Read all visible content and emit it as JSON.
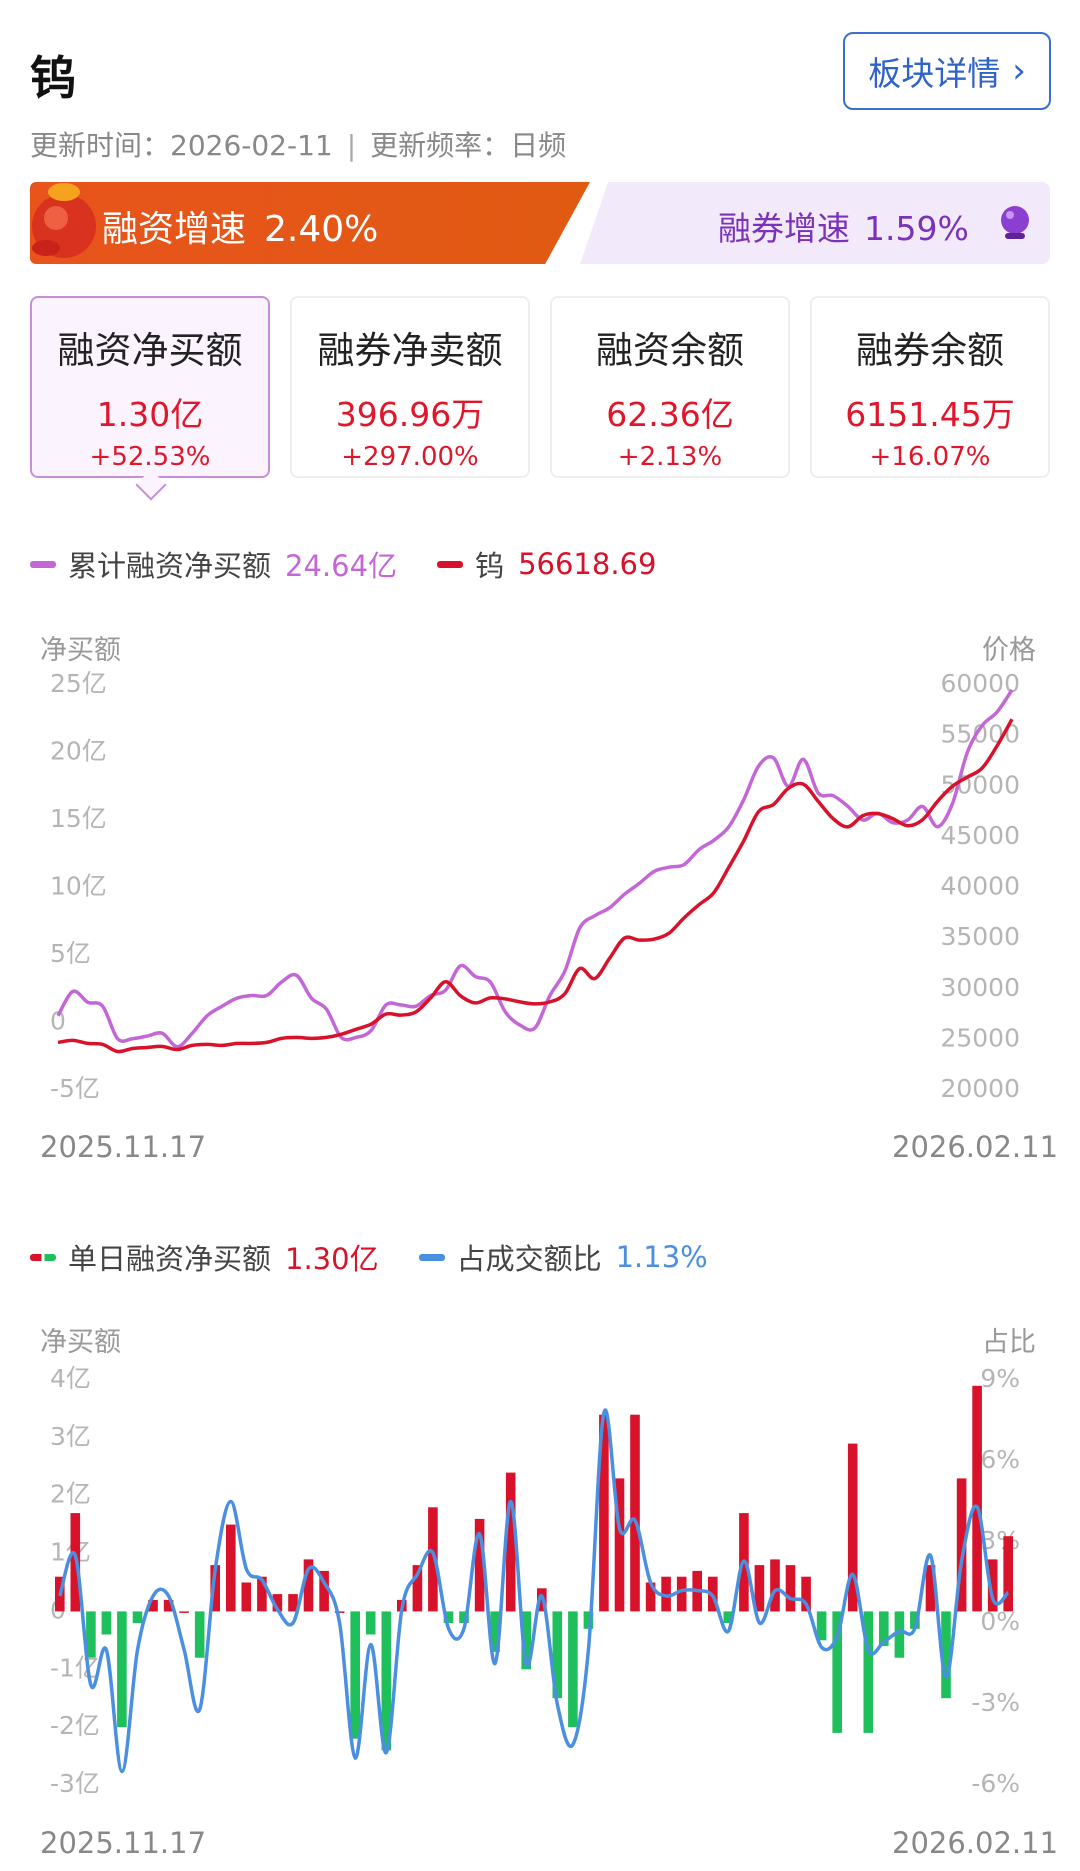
{
  "header": {
    "title": "钨",
    "detail_button": "板块详情",
    "update_time": "更新时间：2026-02-11",
    "update_freq": "更新频率：日频"
  },
  "speed": {
    "financing_label": "融资增速",
    "financing_value": "2.40%",
    "short_label": "融券增速",
    "short_value": "1.59%"
  },
  "cards": [
    {
      "label": "融资净买额",
      "value": "1.30亿",
      "change": "+52.53%"
    },
    {
      "label": "融券净卖额",
      "value": "396.96万",
      "change": "+297.00%"
    },
    {
      "label": "融资余额",
      "value": "62.36亿",
      "change": "+2.13%"
    },
    {
      "label": "融券余额",
      "value": "6151.45万",
      "change": "+16.07%"
    }
  ],
  "colors": {
    "purple": "#c467d6",
    "red": "#d7122a",
    "green": "#1fbf5c",
    "blue": "#4a8fe0"
  },
  "chart_data": [
    {
      "type": "line",
      "legend": [
        {
          "name": "累计融资净买额",
          "value": "24.64亿"
        },
        {
          "name": "钨",
          "value": "56618.69"
        }
      ],
      "left_axis_name": "净买额",
      "right_axis_name": "价格",
      "left_ticks": [
        "25亿",
        "20亿",
        "15亿",
        "10亿",
        "5亿",
        "0",
        "-5亿"
      ],
      "right_ticks": [
        "60000",
        "55000",
        "50000",
        "45000",
        "40000",
        "35000",
        "30000",
        "25000",
        "20000"
      ],
      "x_start": "2025.11.17",
      "x_end": "2026.02.11",
      "ylim_left": [
        -5,
        25
      ],
      "ylim_right": [
        20000,
        60000
      ],
      "series": [
        {
          "name": "累计融资净买额",
          "axis": "left",
          "values": [
            0.5,
            2.3,
            1.5,
            1.2,
            -1.2,
            -1.2,
            -1.0,
            -0.8,
            -1.8,
            -0.8,
            0.5,
            1.2,
            1.8,
            2.0,
            2.0,
            3.0,
            3.5,
            1.8,
            1.0,
            -1.1,
            -1.1,
            -0.6,
            1.3,
            1.3,
            1.2,
            2.0,
            2.4,
            4.2,
            3.4,
            3.0,
            0.8,
            -0.2,
            -0.4,
            2.0,
            3.8,
            7.0,
            7.9,
            8.5,
            9.5,
            10.3,
            11.2,
            11.5,
            11.7,
            12.8,
            13.5,
            14.5,
            16.5,
            19.0,
            19.6,
            17.5,
            19.5,
            17.0,
            16.8,
            16.0,
            15.0,
            15.5,
            14.8,
            15.0,
            16.0,
            14.5,
            16.2,
            20.0,
            22.0,
            23.0,
            24.64
          ]
        },
        {
          "name": "钨",
          "axis": "right",
          "values": [
            24700,
            24900,
            24600,
            24500,
            23800,
            24100,
            24200,
            24300,
            24000,
            24400,
            24500,
            24400,
            24600,
            24600,
            24700,
            25100,
            25200,
            25100,
            25200,
            25500,
            26000,
            26500,
            27500,
            27400,
            27700,
            29100,
            30700,
            29300,
            28600,
            29100,
            29000,
            28700,
            28500,
            28700,
            29500,
            32000,
            31000,
            33000,
            35000,
            34800,
            34900,
            35500,
            37000,
            38300,
            39500,
            42000,
            44600,
            47500,
            48200,
            49800,
            50200,
            48500,
            46800,
            46000,
            47100,
            47300,
            46800,
            46100,
            46700,
            48500,
            50000,
            50900,
            51800,
            54000,
            56618.69
          ]
        }
      ]
    },
    {
      "type": "bar",
      "legend": [
        {
          "name": "单日融资净买额",
          "value": "1.30亿"
        },
        {
          "name": "占成交额比",
          "value": "1.13%"
        }
      ],
      "left_axis_name": "净买额",
      "right_axis_name": "占比",
      "left_ticks": [
        "4亿",
        "3亿",
        "2亿",
        "1亿",
        "0",
        "-1亿",
        "-2亿",
        "-3亿"
      ],
      "right_ticks": [
        "9%",
        "6%",
        "3%",
        "0%",
        "-3%",
        "-6%"
      ],
      "x_start": "2025.11.17",
      "x_end": "2026.02.11",
      "ylim_left": [
        -3,
        4
      ],
      "ylim_right": [
        -6,
        9
      ],
      "series": [
        {
          "name": "单日融资净买额",
          "axis": "left",
          "values": [
            0.6,
            1.7,
            -0.8,
            -0.4,
            -2.0,
            -0.2,
            0.2,
            0.2,
            0,
            -0.8,
            0.8,
            1.5,
            0.5,
            0.6,
            0.3,
            0.3,
            0.9,
            0.7,
            0,
            -2.2,
            -0.4,
            -2.4,
            0.2,
            0.8,
            1.8,
            -0.2,
            -0.2,
            1.6,
            -0.7,
            2.4,
            -1.0,
            0.4,
            -1.5,
            -2.0,
            -0.3,
            3.4,
            2.3,
            3.4,
            0.5,
            0.6,
            0.6,
            0.7,
            0.6,
            -0.2,
            1.7,
            0.8,
            0.9,
            0.8,
            0.6,
            -0.5,
            -2.1,
            2.9,
            -2.1,
            -0.6,
            -0.8,
            -0.3,
            0.8,
            -1.5,
            2.3,
            3.9,
            0.9,
            1.3
          ]
        },
        {
          "name": "占成交额比",
          "axis": "right",
          "values": [
            1.0,
            2.5,
            -2.3,
            -1.0,
            -5.5,
            -1.0,
            1.0,
            1.0,
            -1.0,
            -3.2,
            2.0,
            4.5,
            2.0,
            1.6,
            0.5,
            0.0,
            2.0,
            1.5,
            0.0,
            -5.0,
            -0.8,
            -4.8,
            0.5,
            1.8,
            2.6,
            -0.2,
            -0.2,
            3.3,
            -1.5,
            4.5,
            -1.5,
            1.0,
            -3.0,
            -4.5,
            -1.0,
            7.8,
            3.5,
            3.8,
            1.5,
            1.0,
            1.2,
            1.2,
            1.0,
            -0.3,
            2.3,
            0.0,
            1.2,
            0.9,
            0.7,
            -0.9,
            -0.5,
            1.8,
            -1.0,
            -0.7,
            -0.3,
            -0.2,
            2.5,
            -2.0,
            2.3,
            4.3,
            0.9,
            1.13
          ]
        }
      ]
    }
  ]
}
